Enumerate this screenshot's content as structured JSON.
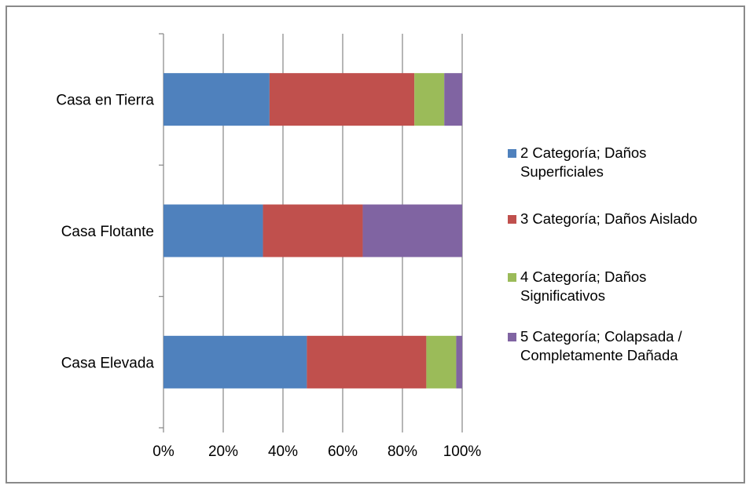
{
  "chart_data": {
    "type": "bar",
    "orientation": "horizontal",
    "stacked": "percent",
    "categories": [
      "Casa en Tierra",
      "Casa Flotante",
      "Casa Elevada"
    ],
    "series": [
      {
        "name": "2 Categoría; Daños Superficiales",
        "color": "#4F81BD",
        "values": [
          35.5,
          33.3,
          48.0
        ]
      },
      {
        "name": "3 Categoría; Daños Aislado",
        "color": "#C0504D",
        "values": [
          48.5,
          33.4,
          40.0
        ]
      },
      {
        "name": "4 Categoría; Daños Significativos",
        "color": "#9BBB59",
        "values": [
          10.0,
          0,
          10.0
        ]
      },
      {
        "name": "5 Categoría; Colapsada / Completamente Dañada",
        "color": "#8064A2",
        "values": [
          6.0,
          33.3,
          2.0
        ]
      }
    ],
    "xlim": [
      0,
      100
    ],
    "x_ticks": [
      "0%",
      "20%",
      "40%",
      "60%",
      "80%",
      "100%"
    ],
    "grid": "vertical",
    "legend_position": "right"
  }
}
